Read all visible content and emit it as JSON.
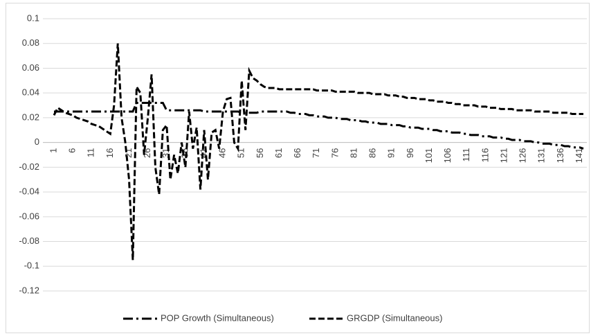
{
  "chart_data": {
    "type": "line",
    "categories": [
      "1",
      null,
      null,
      null,
      null,
      "6",
      null,
      null,
      null,
      null,
      "11",
      null,
      null,
      null,
      null,
      "16",
      null,
      null,
      null,
      null,
      "21",
      null,
      null,
      null,
      null,
      "26",
      null,
      null,
      null,
      null,
      "31",
      null,
      null,
      null,
      null,
      "36",
      null,
      null,
      null,
      null,
      "41",
      null,
      null,
      null,
      null,
      "46",
      null,
      null,
      null,
      null,
      "51",
      null,
      null,
      null,
      null,
      "56",
      null,
      null,
      null,
      null,
      "61",
      null,
      null,
      null,
      null,
      "66",
      null,
      null,
      null,
      null,
      "71",
      null,
      null,
      null,
      null,
      "76",
      null,
      null,
      null,
      null,
      "81",
      null,
      null,
      null,
      null,
      "86",
      null,
      null,
      null,
      null,
      "91",
      null,
      null,
      null,
      null,
      "96",
      null,
      null,
      null,
      null,
      "101",
      null,
      null,
      null,
      null,
      "106",
      null,
      null,
      null,
      null,
      "111",
      null,
      null,
      null,
      null,
      "116",
      null,
      null,
      null,
      null,
      "121",
      null,
      null,
      null,
      null,
      "126",
      null,
      null,
      null,
      null,
      "131",
      null,
      null,
      null,
      null,
      "136",
      null,
      null,
      null,
      null,
      "141",
      null
    ],
    "series": [
      {
        "name": "POP Growth (Simultaneous)",
        "color": "#000000",
        "dash": "dash-dot",
        "values": [
          0.025,
          0.025,
          0.025,
          0.025,
          0.025,
          0.025,
          0.025,
          0.025,
          0.025,
          0.025,
          0.025,
          0.025,
          0.025,
          0.025,
          0.025,
          0.025,
          0.025,
          0.025,
          0.025,
          0.025,
          0.025,
          0.025,
          0.032,
          0.032,
          0.032,
          0.032,
          0.032,
          0.032,
          0.032,
          0.032,
          0.026,
          0.026,
          0.026,
          0.026,
          0.026,
          0.026,
          0.026,
          0.026,
          0.026,
          0.026,
          0.025,
          0.025,
          0.025,
          0.025,
          0.025,
          0.025,
          0.025,
          0.025,
          0.025,
          0.025,
          0.024,
          0.024,
          0.024,
          0.024,
          0.024,
          0.025,
          0.025,
          0.025,
          0.025,
          0.025,
          0.025,
          0.025,
          0.025,
          0.024,
          0.024,
          0.023,
          0.023,
          0.023,
          0.022,
          0.022,
          0.021,
          0.021,
          0.021,
          0.02,
          0.02,
          0.02,
          0.019,
          0.019,
          0.019,
          0.018,
          0.018,
          0.018,
          0.017,
          0.017,
          0.016,
          0.016,
          0.016,
          0.015,
          0.015,
          0.015,
          0.014,
          0.014,
          0.014,
          0.013,
          0.013,
          0.012,
          0.012,
          0.012,
          0.011,
          0.011,
          0.011,
          0.01,
          0.01,
          0.009,
          0.009,
          0.009,
          0.008,
          0.008,
          0.008,
          0.007,
          0.007,
          0.006,
          0.006,
          0.006,
          0.005,
          0.005,
          0.005,
          0.004,
          0.004,
          0.004,
          0.003,
          0.003,
          0.002,
          0.002,
          0.002,
          0.001,
          0.001,
          0.001,
          0,
          0,
          -0.001,
          -0.001,
          -0.001,
          -0.002,
          -0.002,
          -0.002,
          -0.003,
          -0.003,
          -0.004,
          -0.004,
          -0.004,
          -0.005
        ]
      },
      {
        "name": "GRGDP (Simultaneous)",
        "color": "#000000",
        "dash": "dashed",
        "values": [
          0.022,
          0.028,
          0.026,
          0.024,
          0.023,
          0.022,
          0.02,
          0.019,
          0.018,
          0.017,
          0.015,
          0.014,
          0.013,
          0.011,
          0.009,
          0.007,
          0.03,
          0.08,
          0.02,
          0,
          -0.03,
          -0.095,
          0.045,
          0.04,
          -0.01,
          0.02,
          0.055,
          -0.02,
          -0.042,
          0.01,
          0.014,
          -0.03,
          -0.01,
          -0.025,
          0,
          -0.02,
          0.025,
          -0.005,
          0.012,
          -0.038,
          0.01,
          -0.03,
          0.008,
          0.01,
          -0.005,
          0.025,
          0.035,
          0.036,
          0,
          -0.005,
          0.05,
          0.01,
          0.058,
          0.052,
          0.05,
          0.047,
          0.045,
          0.044,
          0.044,
          0.044,
          0.043,
          0.043,
          0.043,
          0.043,
          0.043,
          0.043,
          0.043,
          0.043,
          0.043,
          0.043,
          0.042,
          0.042,
          0.042,
          0.042,
          0.042,
          0.041,
          0.041,
          0.041,
          0.041,
          0.041,
          0.041,
          0.04,
          0.04,
          0.04,
          0.04,
          0.039,
          0.039,
          0.039,
          0.039,
          0.038,
          0.038,
          0.038,
          0.037,
          0.037,
          0.036,
          0.036,
          0.036,
          0.035,
          0.035,
          0.035,
          0.034,
          0.034,
          0.033,
          0.033,
          0.033,
          0.032,
          0.032,
          0.031,
          0.031,
          0.03,
          0.03,
          0.03,
          0.03,
          0.029,
          0.029,
          0.029,
          0.028,
          0.028,
          0.028,
          0.027,
          0.027,
          0.027,
          0.027,
          0.026,
          0.026,
          0.026,
          0.026,
          0.026,
          0.025,
          0.025,
          0.025,
          0.025,
          0.025,
          0.024,
          0.024,
          0.024,
          0.024,
          0.024,
          0.023,
          0.023,
          0.023,
          0.023
        ]
      }
    ],
    "ylim": [
      -0.12,
      0.1
    ],
    "yticks": [
      -0.12,
      -0.1,
      -0.08,
      -0.06,
      -0.04,
      -0.02,
      0,
      0.02,
      0.04,
      0.06,
      0.08,
      0.1
    ],
    "grid": true,
    "legend": "bottom"
  }
}
